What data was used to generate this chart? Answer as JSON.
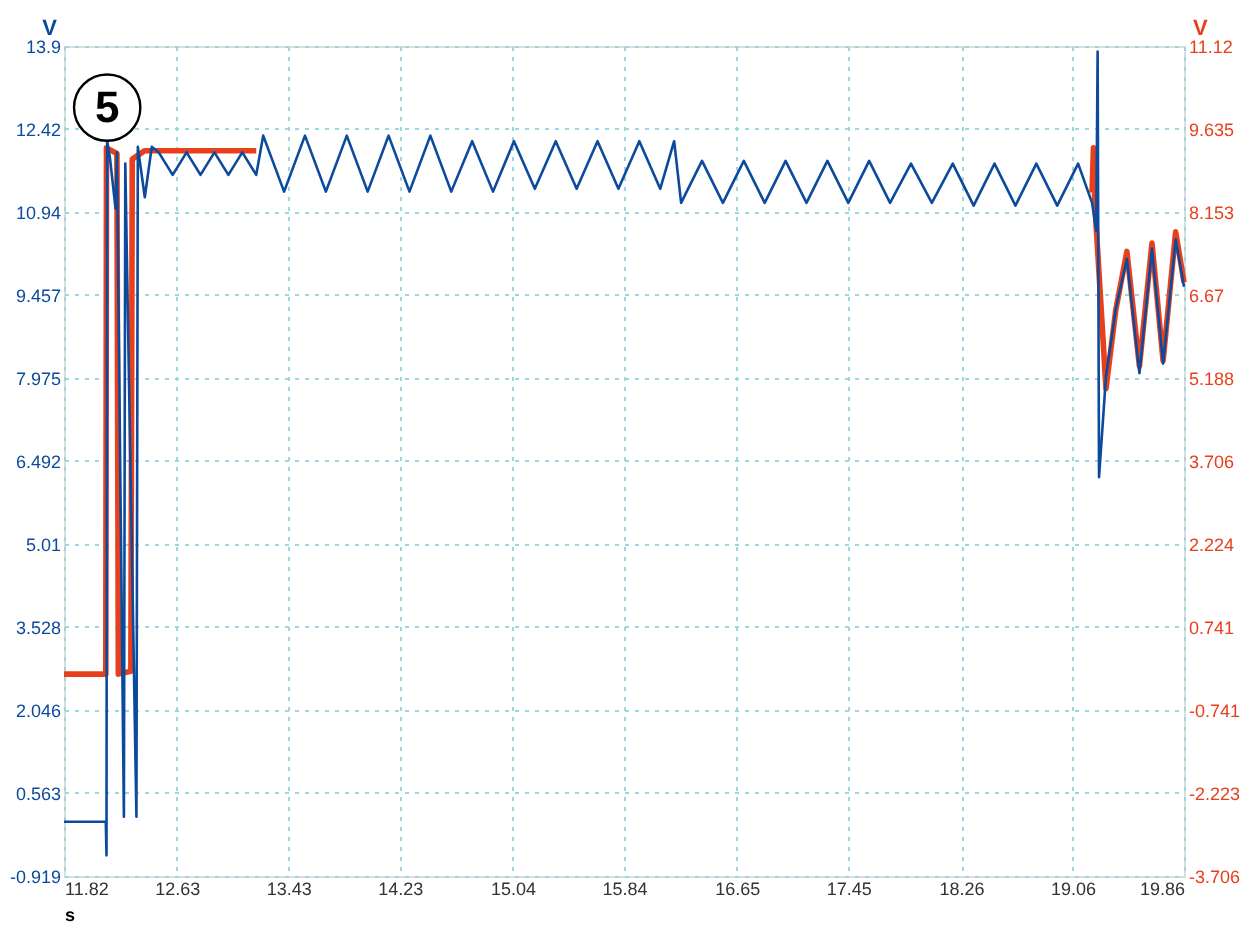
{
  "chart_data": {
    "type": "line",
    "xlabel": "s",
    "ylabel": "V",
    "y2label": "V",
    "xlim": [
      11.82,
      19.86
    ],
    "xticks": [
      11.82,
      12.63,
      13.43,
      14.23,
      15.04,
      15.84,
      16.65,
      17.45,
      18.26,
      19.06,
      19.86
    ],
    "ylim": [
      -0.919,
      13.9
    ],
    "yticks": [
      -0.919,
      0.563,
      2.046,
      3.528,
      5.01,
      6.492,
      7.975,
      9.457,
      10.94,
      12.42,
      13.9
    ],
    "y2lim": [
      -3.706,
      11.12
    ],
    "y2ticks": [
      -3.706,
      -2.223,
      -0.741,
      0.741,
      2.224,
      3.706,
      5.188,
      6.67,
      8.153,
      9.635,
      11.12
    ],
    "grid": true,
    "line_style": "solid",
    "marker": "none",
    "annotations": [
      {
        "text": "5",
        "x": 12.13,
        "y": 12.8
      }
    ],
    "series": [
      {
        "color": "#e8401c",
        "axis": "y2",
        "x": [
          11.82,
          12.12,
          12.125,
          12.2,
          12.21,
          12.3,
          12.31,
          12.4,
          13.2,
          13.3,
          19.2,
          19.21,
          19.22,
          19.3,
          19.37,
          19.45,
          19.54,
          19.63,
          19.71,
          19.8,
          19.86
        ],
        "values": [
          -0.1,
          -0.1,
          9.3,
          9.2,
          -0.1,
          -0.05,
          9.1,
          9.25,
          9.25,
          null,
          8.5,
          9.3,
          8.3,
          5.0,
          6.4,
          7.45,
          5.4,
          7.6,
          5.5,
          7.8,
          6.9
        ]
      },
      {
        "color": "#0b4a9c",
        "x": [
          11.82,
          12.12,
          12.125,
          12.13,
          12.15,
          12.19,
          12.2,
          12.25,
          12.26,
          12.34,
          12.35,
          12.4,
          12.45,
          12.5,
          12.6,
          12.7,
          12.8,
          12.9,
          13.0,
          13.1,
          13.2,
          13.25,
          13.4,
          13.55,
          13.7,
          13.85,
          14.0,
          14.15,
          14.3,
          14.45,
          14.6,
          14.75,
          14.9,
          15.05,
          15.2,
          15.35,
          15.5,
          15.65,
          15.8,
          15.95,
          16.1,
          16.2,
          16.25,
          16.4,
          16.55,
          16.7,
          16.85,
          17.0,
          17.15,
          17.3,
          17.45,
          17.6,
          17.75,
          17.9,
          18.05,
          18.2,
          18.35,
          18.5,
          18.65,
          18.8,
          18.95,
          19.1,
          19.2,
          19.23,
          19.24,
          19.25,
          19.3,
          19.37,
          19.45,
          19.54,
          19.63,
          19.71,
          19.8,
          19.86
        ],
        "values": [
          0.05,
          0.05,
          -0.55,
          12.2,
          11.9,
          11.0,
          12.0,
          0.14,
          11.8,
          0.14,
          12.1,
          11.2,
          12.1,
          12.0,
          11.6,
          12.0,
          11.6,
          12.0,
          11.6,
          12.0,
          11.6,
          12.3,
          11.3,
          12.3,
          11.3,
          12.3,
          11.3,
          12.3,
          11.3,
          12.3,
          11.3,
          12.2,
          11.3,
          12.2,
          11.35,
          12.2,
          11.35,
          12.2,
          11.35,
          12.2,
          11.35,
          12.2,
          11.1,
          11.85,
          11.1,
          11.85,
          11.1,
          11.85,
          11.1,
          11.85,
          11.1,
          11.85,
          11.1,
          11.8,
          11.1,
          11.8,
          11.05,
          11.8,
          11.05,
          11.8,
          11.05,
          11.8,
          11.1,
          10.6,
          13.8,
          6.2,
          8.0,
          9.2,
          10.1,
          8.06,
          10.28,
          8.23,
          10.45,
          9.6
        ]
      }
    ]
  }
}
